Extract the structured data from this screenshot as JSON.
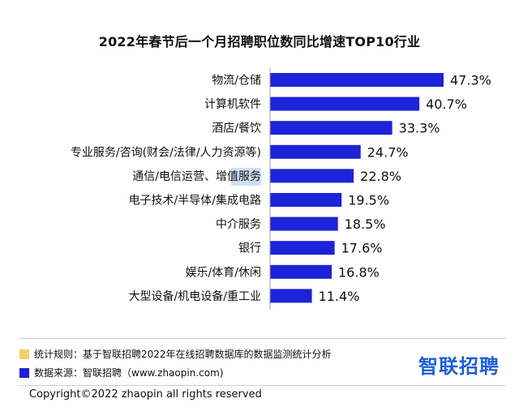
{
  "title": "2022年春节后一个月招聘职位数同比增速TOP10行业",
  "chart_data": {
    "type": "bar",
    "orientation": "horizontal",
    "title": "2022年春节后一个月招聘职位数同比增速TOP10行业",
    "categories": [
      "物流/仓储",
      "计算机软件",
      "酒店/餐饮",
      "专业服务/咨询(财会/法律/人力资源等)",
      "通信/电信运营、增值服务",
      "电子技术/半导体/集成电路",
      "中介服务",
      "银行",
      "娱乐/体育/休闲",
      "大型设备/机电设备/重工业"
    ],
    "values": [
      47.3,
      40.7,
      33.3,
      24.7,
      22.8,
      19.5,
      18.5,
      17.6,
      16.8,
      11.4
    ],
    "value_labels": [
      "47.3%",
      "40.7%",
      "33.3%",
      "24.7%",
      "22.8%",
      "19.5%",
      "18.5%",
      "17.6%",
      "16.8%",
      "11.4%"
    ],
    "xlim": [
      0,
      50
    ],
    "bar_color": "#1e22d8",
    "grid": false
  },
  "notes": {
    "rule": "统计规则：基于智联招聘2022年在线招聘数据库的数据监测统计分析",
    "source": "数据来源：智联招聘（www.zhaopin.com)",
    "rule_color": "#f2cf6a",
    "source_color": "#1e22d8"
  },
  "brand": "智联招聘",
  "copyright": "Copyright©2022 zhaopin all rights reserved"
}
